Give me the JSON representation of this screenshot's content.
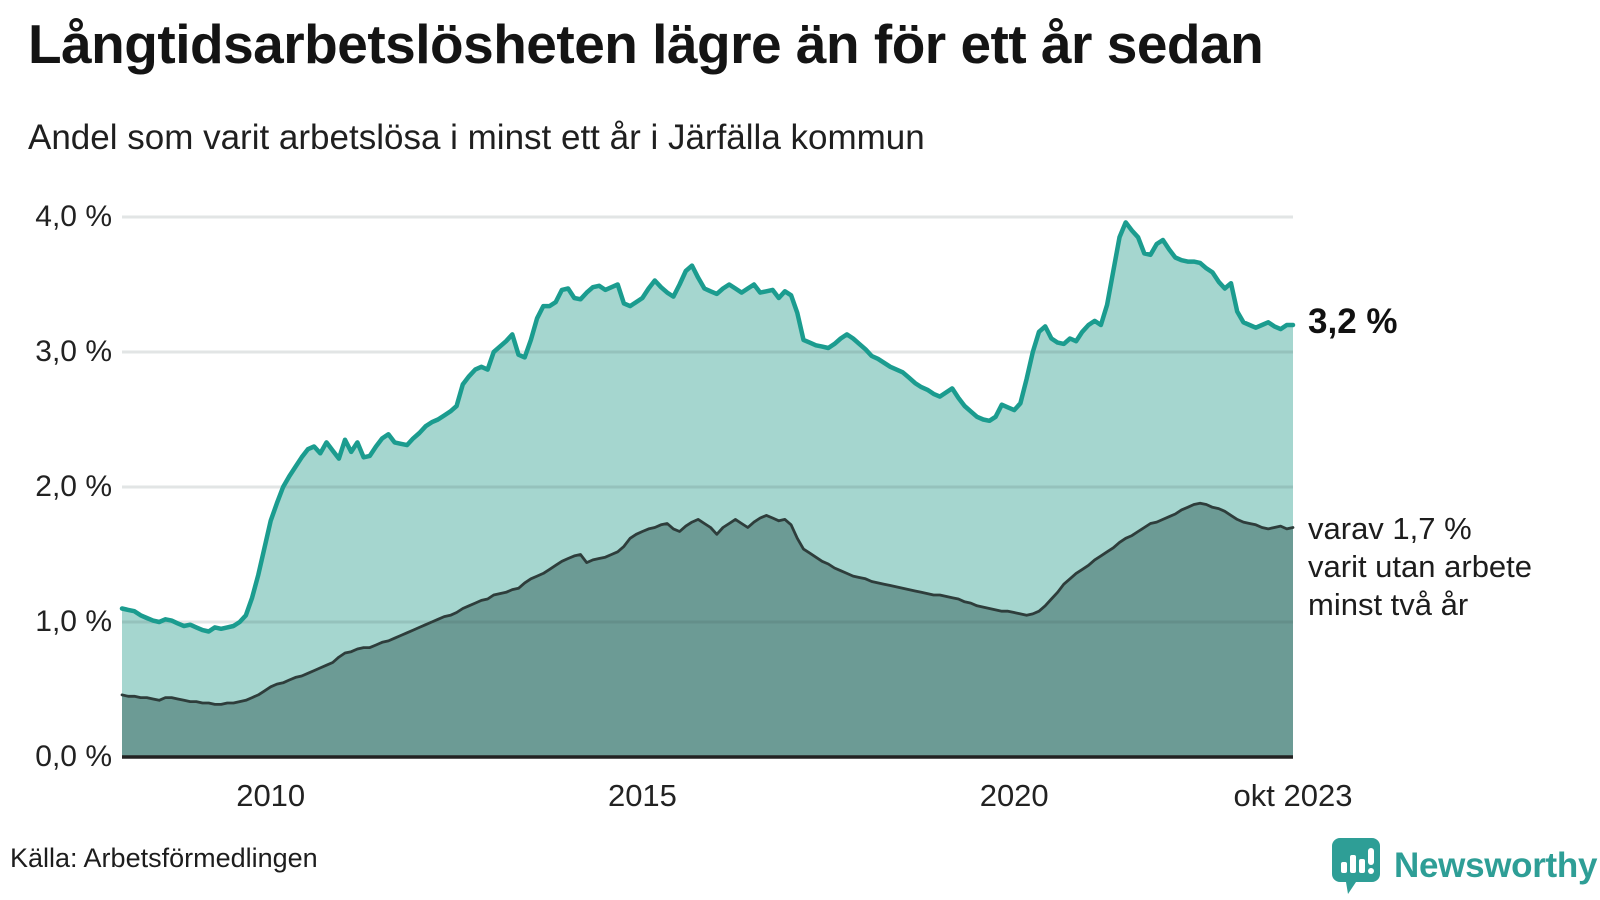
{
  "header": {
    "title": "Långtidsarbetslösheten lägre än för ett år sedan",
    "subtitle": "Andel som varit arbetslösa i minst ett år i Järfälla kommun"
  },
  "annotations": {
    "end_value": "3,2 %",
    "sub_line1": "varav 1,7 %",
    "sub_line2": "varit utan arbete",
    "sub_line3": "minst två år"
  },
  "footer": {
    "source": "Källa: Arbetsförmedlingen",
    "brand": "Newsworthy"
  },
  "colors": {
    "accent_line": "#1B9C8F",
    "light_fill": "#A5D6CF",
    "dark_line": "#2E3D3B",
    "dark_fill": "#6C9B95",
    "grid": "rgba(60,80,80,0.15)",
    "axis": "#222222",
    "brand_teal": "#2E9E96"
  },
  "chart_data": {
    "type": "area",
    "title": "Långtidsarbetslösheten lägre än för ett år sedan",
    "subtitle": "Andel som varit arbetslösa i minst ett år i Järfälla kommun",
    "unit": "%",
    "frequency": "monthly",
    "x_start": "2008-01",
    "x_end": "2023-10",
    "ylim": [
      0,
      4.17
    ],
    "grid": true,
    "legend_position": "right-annotations",
    "y_ticks": [
      {
        "label": "4,0 %",
        "value": 4
      },
      {
        "label": "3,0 %",
        "value": 3
      },
      {
        "label": "2,0 %",
        "value": 2
      },
      {
        "label": "1,0 %",
        "value": 1
      },
      {
        "label": "0,0 %",
        "value": 0
      }
    ],
    "x_ticks": [
      {
        "label": "2010",
        "month": 24
      },
      {
        "label": "2015",
        "month": 84
      },
      {
        "label": "2020",
        "month": 144
      },
      {
        "label": "okt 2023",
        "month": 189
      }
    ],
    "series": [
      {
        "name": "Arbetslösa minst ett år",
        "end_label": "3,2 %",
        "values": [
          1.1,
          1.09,
          1.08,
          1.05,
          1.03,
          1.01,
          1.0,
          1.02,
          1.01,
          0.99,
          0.97,
          0.98,
          0.96,
          0.94,
          0.93,
          0.96,
          0.95,
          0.96,
          0.97,
          1.0,
          1.05,
          1.18,
          1.35,
          1.55,
          1.75,
          1.88,
          2.0,
          2.08,
          2.15,
          2.22,
          2.28,
          2.3,
          2.25,
          2.33,
          2.27,
          2.21,
          2.35,
          2.26,
          2.33,
          2.22,
          2.23,
          2.3,
          2.36,
          2.39,
          2.33,
          2.32,
          2.31,
          2.36,
          2.4,
          2.45,
          2.48,
          2.5,
          2.53,
          2.56,
          2.6,
          2.76,
          2.82,
          2.87,
          2.89,
          2.87,
          3.0,
          3.04,
          3.08,
          3.13,
          2.98,
          2.96,
          3.09,
          3.25,
          3.34,
          3.34,
          3.37,
          3.46,
          3.47,
          3.4,
          3.39,
          3.44,
          3.48,
          3.49,
          3.46,
          3.48,
          3.5,
          3.36,
          3.34,
          3.37,
          3.4,
          3.47,
          3.53,
          3.48,
          3.44,
          3.41,
          3.5,
          3.6,
          3.64,
          3.55,
          3.47,
          3.45,
          3.43,
          3.47,
          3.5,
          3.47,
          3.44,
          3.47,
          3.5,
          3.44,
          3.45,
          3.46,
          3.4,
          3.45,
          3.42,
          3.29,
          3.09,
          3.07,
          3.05,
          3.04,
          3.03,
          3.06,
          3.1,
          3.13,
          3.1,
          3.06,
          3.02,
          2.97,
          2.95,
          2.92,
          2.89,
          2.87,
          2.85,
          2.81,
          2.77,
          2.74,
          2.72,
          2.69,
          2.67,
          2.7,
          2.73,
          2.66,
          2.6,
          2.56,
          2.52,
          2.5,
          2.49,
          2.52,
          2.61,
          2.59,
          2.57,
          2.62,
          2.8,
          3.0,
          3.15,
          3.19,
          3.1,
          3.07,
          3.06,
          3.1,
          3.08,
          3.15,
          3.2,
          3.23,
          3.2,
          3.35,
          3.6,
          3.85,
          3.96,
          3.9,
          3.85,
          3.73,
          3.72,
          3.8,
          3.83,
          3.76,
          3.7,
          3.68,
          3.67,
          3.67,
          3.66,
          3.62,
          3.59,
          3.52,
          3.47,
          3.51,
          3.3,
          3.22,
          3.2,
          3.18,
          3.2,
          3.22,
          3.19,
          3.17,
          3.2,
          3.2
        ]
      },
      {
        "name": "Arbetslösa minst två år",
        "end_label": "varav 1,7 % varit utan arbete minst två år",
        "values": [
          0.46,
          0.45,
          0.45,
          0.44,
          0.44,
          0.43,
          0.42,
          0.44,
          0.44,
          0.43,
          0.42,
          0.41,
          0.41,
          0.4,
          0.4,
          0.39,
          0.39,
          0.4,
          0.4,
          0.41,
          0.42,
          0.44,
          0.46,
          0.49,
          0.52,
          0.54,
          0.55,
          0.57,
          0.59,
          0.6,
          0.62,
          0.64,
          0.66,
          0.68,
          0.7,
          0.74,
          0.77,
          0.78,
          0.8,
          0.81,
          0.81,
          0.83,
          0.85,
          0.86,
          0.88,
          0.9,
          0.92,
          0.94,
          0.96,
          0.98,
          1.0,
          1.02,
          1.04,
          1.05,
          1.07,
          1.1,
          1.12,
          1.14,
          1.16,
          1.17,
          1.2,
          1.21,
          1.22,
          1.24,
          1.25,
          1.29,
          1.32,
          1.34,
          1.36,
          1.39,
          1.42,
          1.45,
          1.47,
          1.49,
          1.5,
          1.44,
          1.46,
          1.47,
          1.48,
          1.5,
          1.52,
          1.56,
          1.62,
          1.65,
          1.67,
          1.69,
          1.7,
          1.72,
          1.73,
          1.69,
          1.67,
          1.71,
          1.74,
          1.76,
          1.73,
          1.7,
          1.65,
          1.7,
          1.73,
          1.76,
          1.73,
          1.7,
          1.74,
          1.77,
          1.79,
          1.77,
          1.75,
          1.76,
          1.72,
          1.62,
          1.54,
          1.51,
          1.48,
          1.45,
          1.43,
          1.4,
          1.38,
          1.36,
          1.34,
          1.33,
          1.32,
          1.3,
          1.29,
          1.28,
          1.27,
          1.26,
          1.25,
          1.24,
          1.23,
          1.22,
          1.21,
          1.2,
          1.2,
          1.19,
          1.18,
          1.17,
          1.15,
          1.14,
          1.12,
          1.11,
          1.1,
          1.09,
          1.08,
          1.08,
          1.07,
          1.06,
          1.05,
          1.06,
          1.08,
          1.12,
          1.17,
          1.22,
          1.28,
          1.32,
          1.36,
          1.39,
          1.42,
          1.46,
          1.49,
          1.52,
          1.55,
          1.59,
          1.62,
          1.64,
          1.67,
          1.7,
          1.73,
          1.74,
          1.76,
          1.78,
          1.8,
          1.83,
          1.85,
          1.87,
          1.88,
          1.87,
          1.85,
          1.84,
          1.82,
          1.79,
          1.76,
          1.74,
          1.73,
          1.72,
          1.7,
          1.69,
          1.7,
          1.71,
          1.69,
          1.7
        ]
      }
    ]
  }
}
